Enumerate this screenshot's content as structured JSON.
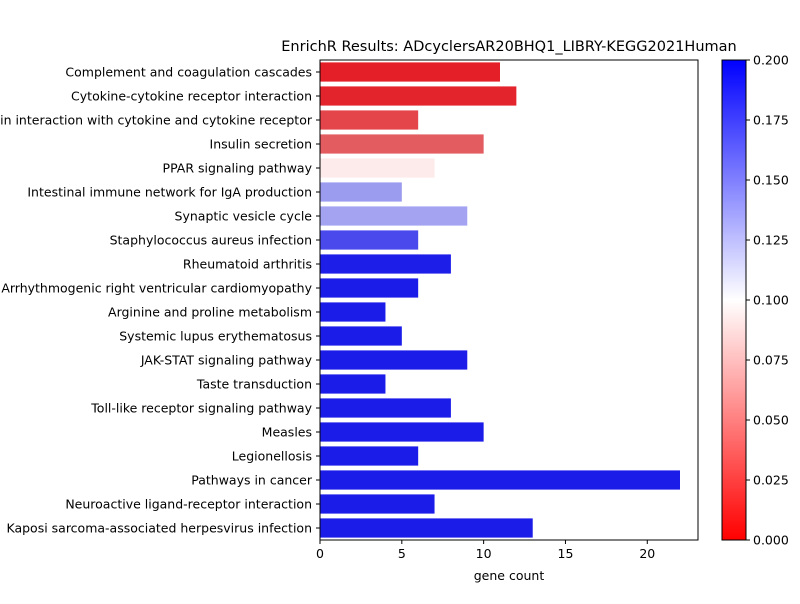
{
  "chart_data": {
    "type": "bar",
    "orientation": "horizontal",
    "title": "EnrichR Results: ADcyclersAR20BHQ1_LIBRY-KEGG2021Human",
    "xlabel": "gene count",
    "ylabel": "",
    "xlim": [
      0,
      23.1
    ],
    "xticks": [
      0,
      5,
      10,
      15,
      20
    ],
    "categories": [
      "Complement and coagulation cascades",
      "Cytokine-cytokine receptor interaction",
      "Viral protein interaction with cytokine and cytokine receptor",
      "Insulin secretion",
      "PPAR signaling pathway",
      "Intestinal immune network for IgA production",
      "Synaptic vesicle cycle",
      "Staphylococcus aureus infection",
      "Rheumatoid arthritis",
      "Arrhythmogenic right ventricular cardiomyopathy",
      "Arginine and proline metabolism",
      "Systemic lupus erythematosus",
      "JAK-STAT signaling pathway",
      "Taste transduction",
      "Toll-like receptor signaling pathway",
      "Measles",
      "Legionellosis",
      "Pathways in cancer",
      "Neuroactive ligand-receptor interaction",
      "Kaposi sarcoma-associated herpesvirus infection"
    ],
    "values": [
      11,
      12,
      6,
      10,
      7,
      5,
      9,
      6,
      8,
      6,
      4,
      5,
      9,
      4,
      8,
      10,
      6,
      22,
      7,
      13
    ],
    "colors": [
      "#e51f27",
      "#e4242c",
      "#e4454a",
      "#e35c60",
      "#fdeaea",
      "#9b9bf0",
      "#a3a3f2",
      "#4a4aec",
      "#1e1ee9",
      "#1c1ce9",
      "#1c1ce9",
      "#1c1ce9",
      "#1c1ce9",
      "#1c1ce9",
      "#1c1ce9",
      "#1c1ce9",
      "#1c1ce9",
      "#1c1ce9",
      "#1c1ce9",
      "#1c1ce9"
    ],
    "colorbar": {
      "min": 0.0,
      "max": 0.2,
      "ticks": [
        "0.000",
        "0.025",
        "0.050",
        "0.075",
        "0.100",
        "0.125",
        "0.150",
        "0.175",
        "0.200"
      ],
      "colormap": [
        "#ff0000",
        "#ffffff",
        "#0000ff"
      ]
    }
  }
}
